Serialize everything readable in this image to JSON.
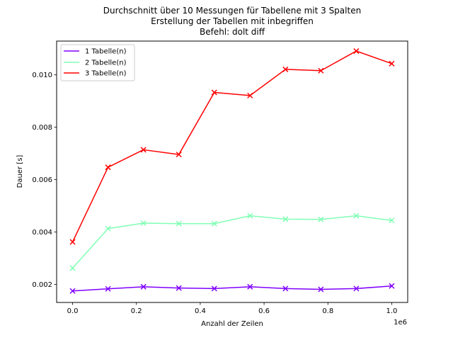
{
  "chart_data": {
    "type": "line",
    "title": [
      "Durchschnitt über 10 Messungen für Tabellene mit 3 Spalten",
      "Erstellung der Tabellen mit inbegriffen",
      "Befehl: dolt diff"
    ],
    "xlabel": "Anzahl der Zeilen",
    "ylabel": "Dauer [s]",
    "x_offset_label": "1e6",
    "x_tick_labels": [
      "0.0",
      "0.2",
      "0.4",
      "0.6",
      "0.8",
      "1.0"
    ],
    "x_ticks": [
      0.0,
      0.2,
      0.4,
      0.6,
      0.8,
      1.0
    ],
    "y_tick_labels": [
      "0.002",
      "0.004",
      "0.006",
      "0.008",
      "0.010"
    ],
    "y_ticks": [
      0.002,
      0.004,
      0.006,
      0.008,
      0.01
    ],
    "xlim": [
      -0.05,
      1.05
    ],
    "ylim": [
      0.00131,
      0.01129
    ],
    "grid": false,
    "legend_position": "top-left",
    "marker": "x",
    "x": [
      0.0,
      0.111,
      0.222,
      0.333,
      0.444,
      0.556,
      0.667,
      0.778,
      0.889,
      1.0
    ],
    "series": [
      {
        "name": "1 Tabelle(n)",
        "color": "#8000ff",
        "values": [
          0.00175,
          0.00183,
          0.00191,
          0.00186,
          0.00184,
          0.00191,
          0.00184,
          0.00181,
          0.00184,
          0.00194
        ]
      },
      {
        "name": "2 Tabelle(n)",
        "color": "#80ffb4",
        "values": [
          0.00262,
          0.00413,
          0.00434,
          0.00432,
          0.00432,
          0.00462,
          0.00449,
          0.00448,
          0.00462,
          0.00444
        ]
      },
      {
        "name": "3 Tabelle(n)",
        "color": "#ff0000",
        "values": [
          0.00362,
          0.00647,
          0.00714,
          0.00696,
          0.00933,
          0.00921,
          0.01021,
          0.01016,
          0.01091,
          0.01043
        ]
      }
    ]
  }
}
